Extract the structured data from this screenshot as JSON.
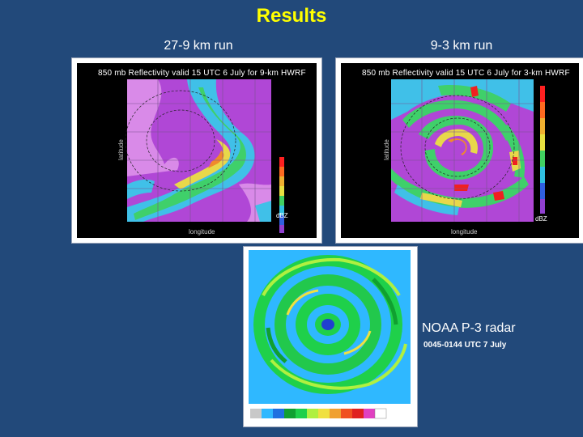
{
  "slide": {
    "title": "Results"
  },
  "panels": {
    "left": {
      "caption": "27-9 km run",
      "plot_title": "850  mb  Reflectivity  valid  15  UTC  6  July  for  9-km  HWRF",
      "ylabel": "latitude",
      "xlabel": "longitude",
      "unit": "dBZ"
    },
    "right": {
      "caption": "9-3 km run",
      "plot_title": "850  mb  Reflectivity  valid  15  UTC  6  July  for  3-km  HWRF",
      "ylabel": "latitude",
      "xlabel": "longitude",
      "unit": "dBZ"
    },
    "radar": {
      "label": "NOAA P-3 radar",
      "sub": "0045-0144 UTC 7 July"
    }
  },
  "colors": {
    "background": "#22497a",
    "title": "#ffff00"
  }
}
